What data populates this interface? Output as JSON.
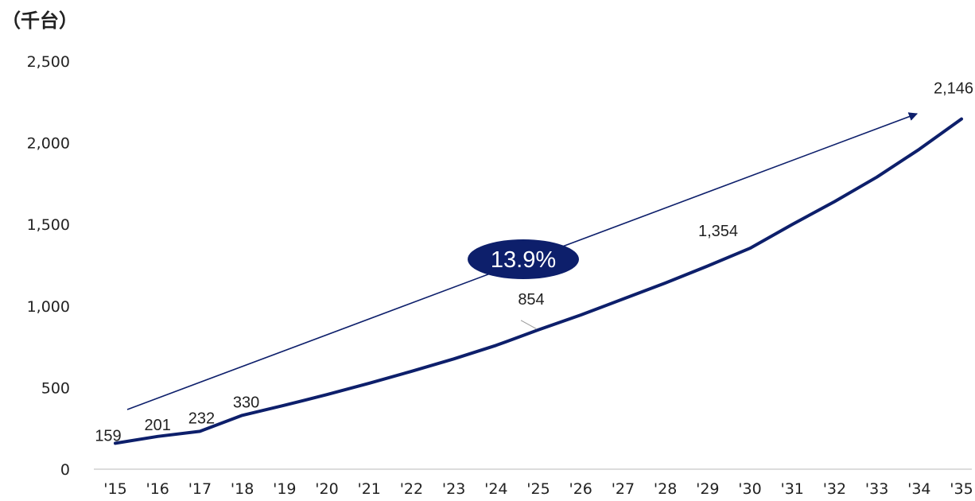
{
  "chart_data": {
    "type": "line",
    "unit_label": "（千台）",
    "categories": [
      "'15",
      "'16",
      "'17",
      "'18",
      "'19",
      "'20",
      "'21",
      "'22",
      "'23",
      "'24",
      "'25",
      "'26",
      "'27",
      "'28",
      "'29",
      "'30",
      "'31",
      "'32",
      "'33",
      "'34",
      "'35"
    ],
    "values": [
      159,
      201,
      232,
      330,
      392,
      457,
      527,
      600,
      676,
      759,
      854,
      945,
      1043,
      1141,
      1245,
      1354,
      1500,
      1640,
      1790,
      1960,
      2146
    ],
    "data_labels": [
      {
        "index": 0,
        "text": "159"
      },
      {
        "index": 1,
        "text": "201"
      },
      {
        "index": 2,
        "text": "232"
      },
      {
        "index": 3,
        "text": "330"
      },
      {
        "index": 10,
        "text": "854"
      },
      {
        "index": 15,
        "text": "1,354"
      },
      {
        "index": 20,
        "text": "2,146"
      }
    ],
    "y_ticks": [
      "0",
      "500",
      "1,000",
      "1,500",
      "2,000",
      "2,500"
    ],
    "ylim": [
      0,
      2500
    ],
    "grid": false,
    "annotation": {
      "text": "13.9%",
      "from_index": 0,
      "to_index": 20
    },
    "colors": {
      "line": "#0d1f6b",
      "badge": "#0d1f6b",
      "axis": "#d0d0d0"
    }
  }
}
